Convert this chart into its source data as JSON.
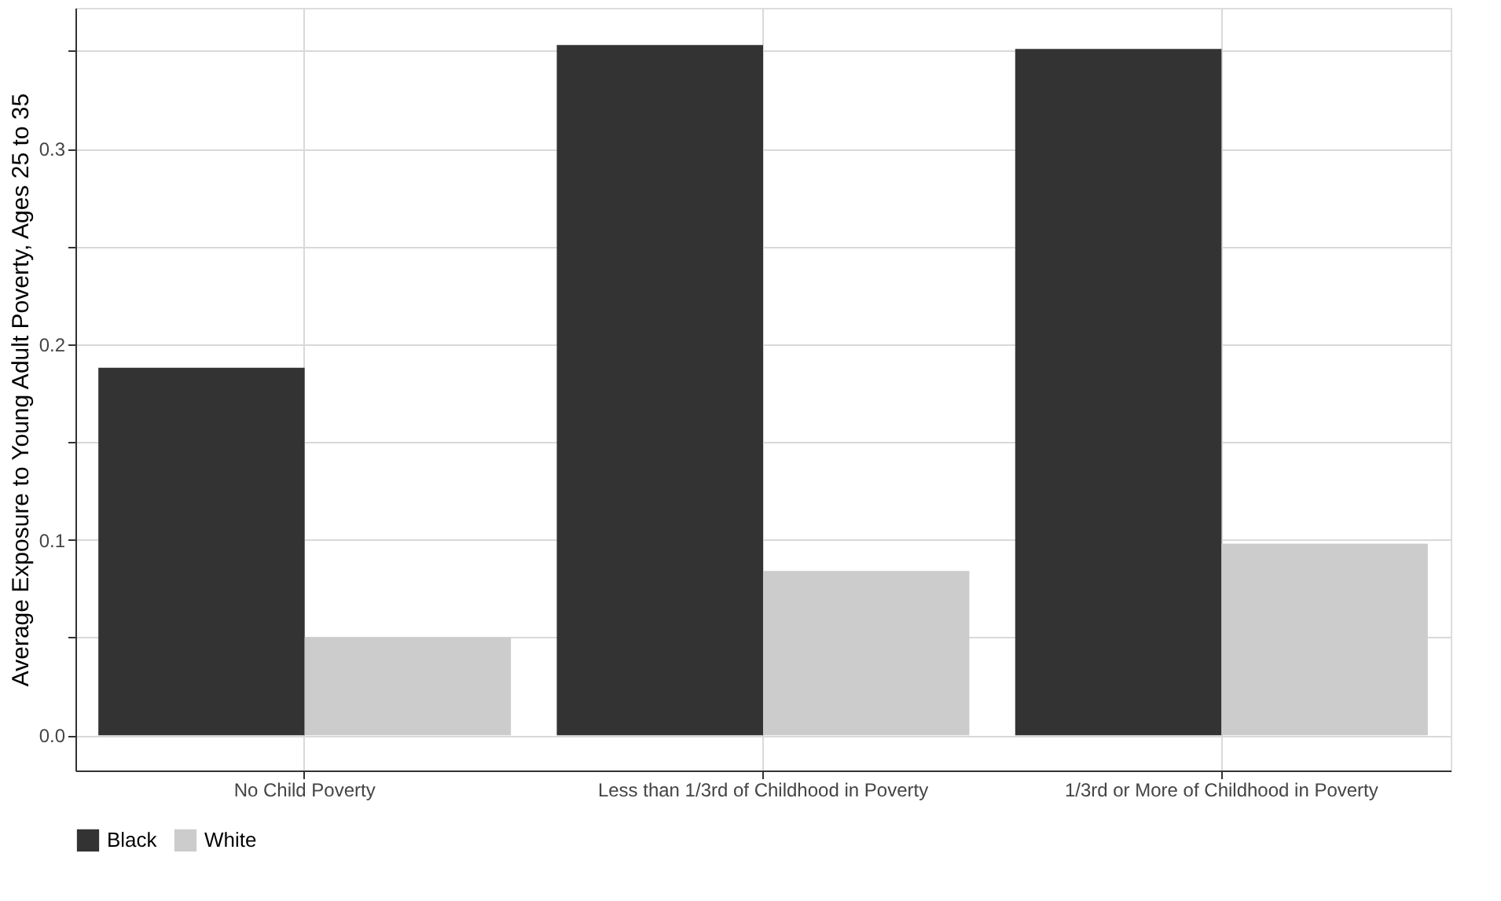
{
  "chart_data": {
    "type": "bar",
    "ylabel": "Average Exposure to Young Adult Poverty, Ages 25 to 35",
    "categories": [
      "No Child Poverty",
      "Less than 1/3rd of Childhood in Poverty",
      "1/3rd or More of Childhood in Poverty"
    ],
    "series": [
      {
        "name": "Black",
        "color": "#333333",
        "values": [
          0.188,
          0.353,
          0.351
        ]
      },
      {
        "name": "White",
        "color": "#cccccc",
        "values": [
          0.05,
          0.084,
          0.098
        ]
      }
    ],
    "ylim": [
      -0.018,
      0.372
    ],
    "yticks": [
      {
        "value": 0,
        "label": "0.0"
      },
      {
        "value": 0.05,
        "label": null
      },
      0.1,
      {
        "value": 0.15,
        "label": null
      },
      0.2,
      {
        "value": 0.25,
        "label": null
      },
      0.3,
      {
        "value": 0.35,
        "label": null
      }
    ],
    "grid": true,
    "legend": "bottom"
  }
}
